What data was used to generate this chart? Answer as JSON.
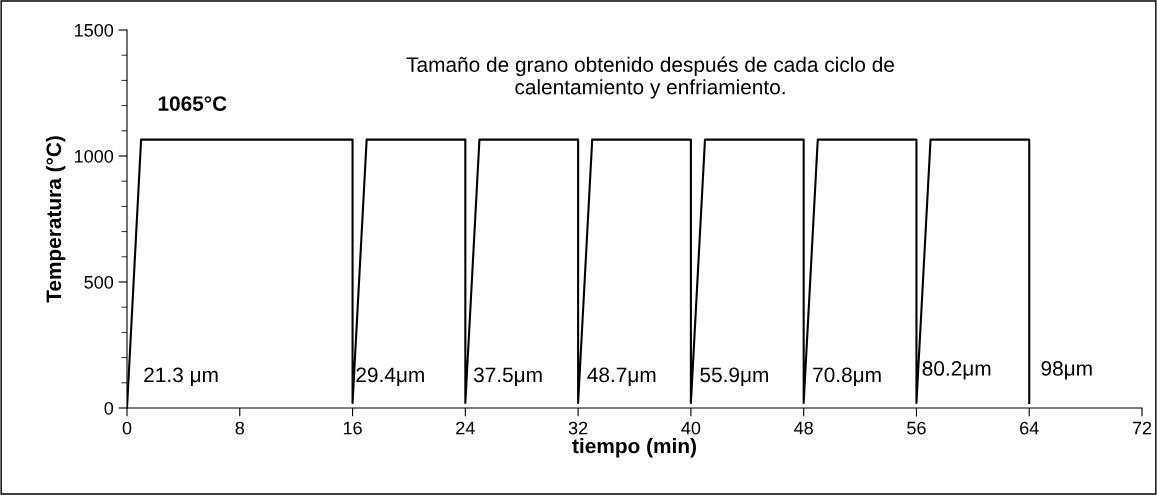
{
  "chart_data": {
    "type": "line",
    "xlabel": "tiempo (min)",
    "ylabel": "Temperatura (°C)",
    "x": [
      0,
      1,
      16,
      16,
      17,
      24,
      24,
      25,
      32,
      32,
      33,
      40,
      40,
      41,
      48,
      48,
      49,
      56,
      56,
      57,
      64,
      64
    ],
    "series": [
      {
        "color": "#000000",
        "values": [
          0,
          1065,
          1065,
          20,
          1065,
          1065,
          20,
          1065,
          1065,
          20,
          1065,
          1065,
          20,
          1065,
          1065,
          20,
          1065,
          1065,
          20,
          1065,
          1065,
          20
        ]
      }
    ],
    "xlim": [
      0,
      72
    ],
    "xticks": [
      0,
      8,
      16,
      24,
      32,
      40,
      48,
      56,
      64,
      72
    ],
    "ylim": [
      0,
      1500
    ],
    "yticks": [
      0,
      500,
      1000,
      1500
    ],
    "grid": false,
    "legend": false,
    "marker": "none",
    "line_style": "solid",
    "annotations": [
      "Tamaño de grano obtenido después de cada ciclo de\ncalentamiento y enfriamiento.",
      "1065°C",
      "21.3 μm",
      "29.4μm",
      "37.5μm",
      "48.7μm",
      "55.9μm",
      "70.8μm",
      "80.2μm",
      "98μm"
    ]
  }
}
